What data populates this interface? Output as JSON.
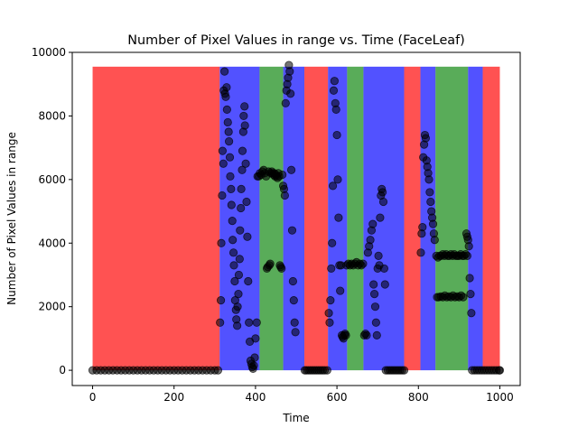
{
  "chart_data": {
    "type": "scatter",
    "title": "Number of Pixel Values in range vs. Time (FaceLeaf)",
    "xlabel": "Time",
    "ylabel": "Number of Pixel Values in range",
    "xlim": [
      -50,
      1050
    ],
    "ylim": [
      -480,
      10000
    ],
    "xticks": [
      0,
      200,
      400,
      600,
      800,
      1000
    ],
    "yticks": [
      0,
      2000,
      4000,
      6000,
      8000,
      10000
    ],
    "grid": false,
    "background_bands": {
      "top": 9550,
      "colors": {
        "red": "#ff0000",
        "blue": "#0000ff",
        "green": "#008000"
      },
      "segments": [
        {
          "start": 0,
          "end": 312,
          "color": "red"
        },
        {
          "start": 312,
          "end": 410,
          "color": "blue"
        },
        {
          "start": 410,
          "end": 468,
          "color": "green"
        },
        {
          "start": 468,
          "end": 520,
          "color": "blue"
        },
        {
          "start": 520,
          "end": 578,
          "color": "red"
        },
        {
          "start": 578,
          "end": 625,
          "color": "blue"
        },
        {
          "start": 625,
          "end": 665,
          "color": "green"
        },
        {
          "start": 665,
          "end": 765,
          "color": "blue"
        },
        {
          "start": 765,
          "end": 805,
          "color": "red"
        },
        {
          "start": 805,
          "end": 842,
          "color": "blue"
        },
        {
          "start": 842,
          "end": 922,
          "color": "green"
        },
        {
          "start": 922,
          "end": 958,
          "color": "blue"
        },
        {
          "start": 958,
          "end": 1000,
          "color": "red"
        }
      ]
    },
    "series": [
      {
        "marker_color": "#000000",
        "points": [
          [
            0,
            0
          ],
          [
            10,
            0
          ],
          [
            20,
            0
          ],
          [
            30,
            0
          ],
          [
            40,
            0
          ],
          [
            50,
            0
          ],
          [
            60,
            0
          ],
          [
            70,
            0
          ],
          [
            80,
            0
          ],
          [
            90,
            0
          ],
          [
            100,
            0
          ],
          [
            110,
            0
          ],
          [
            120,
            0
          ],
          [
            130,
            0
          ],
          [
            140,
            0
          ],
          [
            150,
            0
          ],
          [
            160,
            0
          ],
          [
            170,
            0
          ],
          [
            180,
            0
          ],
          [
            190,
            0
          ],
          [
            200,
            0
          ],
          [
            210,
            0
          ],
          [
            220,
            0
          ],
          [
            230,
            0
          ],
          [
            240,
            0
          ],
          [
            250,
            0
          ],
          [
            260,
            0
          ],
          [
            270,
            0
          ],
          [
            280,
            0
          ],
          [
            290,
            0
          ],
          [
            300,
            0
          ],
          [
            308,
            0
          ],
          [
            313,
            1500
          ],
          [
            315,
            2200
          ],
          [
            316,
            4000
          ],
          [
            318,
            5500
          ],
          [
            319,
            6900
          ],
          [
            321,
            6500
          ],
          [
            322,
            8800
          ],
          [
            324,
            9400
          ],
          [
            325,
            8700
          ],
          [
            327,
            8600
          ],
          [
            329,
            8900
          ],
          [
            330,
            8200
          ],
          [
            332,
            7800
          ],
          [
            334,
            7500
          ],
          [
            335,
            7200
          ],
          [
            337,
            6700
          ],
          [
            338,
            6100
          ],
          [
            340,
            5700
          ],
          [
            341,
            5200
          ],
          [
            343,
            4700
          ],
          [
            344,
            4100
          ],
          [
            346,
            3700
          ],
          [
            347,
            3300
          ],
          [
            349,
            2800
          ],
          [
            350,
            2200
          ],
          [
            352,
            1900
          ],
          [
            353,
            1600
          ],
          [
            355,
            1400
          ],
          [
            356,
            2000
          ],
          [
            358,
            2400
          ],
          [
            359,
            3000
          ],
          [
            361,
            3500
          ],
          [
            362,
            4400
          ],
          [
            364,
            5100
          ],
          [
            365,
            5700
          ],
          [
            367,
            6300
          ],
          [
            368,
            6900
          ],
          [
            370,
            7500
          ],
          [
            371,
            8000
          ],
          [
            373,
            8300
          ],
          [
            374,
            7700
          ],
          [
            376,
            6500
          ],
          [
            378,
            5300
          ],
          [
            380,
            4200
          ],
          [
            382,
            2800
          ],
          [
            384,
            1500
          ],
          [
            386,
            900
          ],
          [
            388,
            300
          ],
          [
            390,
            200
          ],
          [
            392,
            100
          ],
          [
            394,
            50
          ],
          [
            396,
            150
          ],
          [
            398,
            400
          ],
          [
            400,
            1000
          ],
          [
            403,
            1500
          ],
          [
            405,
            6100
          ],
          [
            408,
            6100
          ],
          [
            411,
            6200
          ],
          [
            414,
            6150
          ],
          [
            417,
            6250
          ],
          [
            420,
            6300
          ],
          [
            423,
            6200
          ],
          [
            426,
            6100
          ],
          [
            428,
            3200
          ],
          [
            430,
            3250
          ],
          [
            432,
            6250
          ],
          [
            434,
            3300
          ],
          [
            436,
            3350
          ],
          [
            438,
            6200
          ],
          [
            440,
            6250
          ],
          [
            442,
            6200
          ],
          [
            444,
            6150
          ],
          [
            446,
            6200
          ],
          [
            448,
            6100
          ],
          [
            450,
            6150
          ],
          [
            452,
            6100
          ],
          [
            454,
            6050
          ],
          [
            456,
            6200
          ],
          [
            458,
            6100
          ],
          [
            460,
            3300
          ],
          [
            462,
            3250
          ],
          [
            464,
            3200
          ],
          [
            466,
            6150
          ],
          [
            468,
            5800
          ],
          [
            470,
            5700
          ],
          [
            472,
            5500
          ],
          [
            474,
            8400
          ],
          [
            476,
            8800
          ],
          [
            478,
            9000
          ],
          [
            480,
            9200
          ],
          [
            482,
            9600
          ],
          [
            484,
            9400
          ],
          [
            486,
            8700
          ],
          [
            488,
            6300
          ],
          [
            490,
            4400
          ],
          [
            492,
            2800
          ],
          [
            494,
            2200
          ],
          [
            496,
            1500
          ],
          [
            498,
            1200
          ],
          [
            521,
            0
          ],
          [
            525,
            0
          ],
          [
            530,
            0
          ],
          [
            535,
            0
          ],
          [
            540,
            0
          ],
          [
            545,
            0
          ],
          [
            550,
            0
          ],
          [
            555,
            0
          ],
          [
            560,
            0
          ],
          [
            565,
            0
          ],
          [
            570,
            0
          ],
          [
            576,
            0
          ],
          [
            580,
            1800
          ],
          [
            582,
            1500
          ],
          [
            584,
            2200
          ],
          [
            586,
            3200
          ],
          [
            588,
            4000
          ],
          [
            590,
            5800
          ],
          [
            592,
            8800
          ],
          [
            594,
            9100
          ],
          [
            596,
            8400
          ],
          [
            598,
            8200
          ],
          [
            600,
            7400
          ],
          [
            602,
            6000
          ],
          [
            604,
            4800
          ],
          [
            606,
            3300
          ],
          [
            608,
            2500
          ],
          [
            610,
            3300
          ],
          [
            612,
            1100
          ],
          [
            614,
            1050
          ],
          [
            616,
            1000
          ],
          [
            618,
            1100
          ],
          [
            620,
            1150
          ],
          [
            622,
            1100
          ],
          [
            624,
            3300
          ],
          [
            628,
            3350
          ],
          [
            632,
            3300
          ],
          [
            636,
            3350
          ],
          [
            640,
            3300
          ],
          [
            644,
            3350
          ],
          [
            648,
            3400
          ],
          [
            652,
            3300
          ],
          [
            656,
            3350
          ],
          [
            660,
            3300
          ],
          [
            664,
            3350
          ],
          [
            667,
            1100
          ],
          [
            670,
            1150
          ],
          [
            673,
            1100
          ],
          [
            676,
            3700
          ],
          [
            679,
            3900
          ],
          [
            682,
            4100
          ],
          [
            685,
            4400
          ],
          [
            688,
            4600
          ],
          [
            690,
            2700
          ],
          [
            692,
            2400
          ],
          [
            694,
            2000
          ],
          [
            696,
            1500
          ],
          [
            698,
            1100
          ],
          [
            700,
            3200
          ],
          [
            702,
            3600
          ],
          [
            704,
            3300
          ],
          [
            706,
            4800
          ],
          [
            708,
            5500
          ],
          [
            710,
            5700
          ],
          [
            712,
            5600
          ],
          [
            714,
            5300
          ],
          [
            716,
            3200
          ],
          [
            718,
            2700
          ],
          [
            720,
            0
          ],
          [
            725,
            0
          ],
          [
            730,
            0
          ],
          [
            735,
            0
          ],
          [
            740,
            0
          ],
          [
            745,
            0
          ],
          [
            750,
            0
          ],
          [
            755,
            0
          ],
          [
            760,
            0
          ],
          [
            765,
            0
          ],
          [
            806,
            3700
          ],
          [
            808,
            4300
          ],
          [
            810,
            4500
          ],
          [
            812,
            6700
          ],
          [
            814,
            7100
          ],
          [
            816,
            7400
          ],
          [
            818,
            7300
          ],
          [
            820,
            6600
          ],
          [
            822,
            6400
          ],
          [
            824,
            6200
          ],
          [
            826,
            6000
          ],
          [
            828,
            5600
          ],
          [
            830,
            5300
          ],
          [
            832,
            5000
          ],
          [
            834,
            4800
          ],
          [
            836,
            4600
          ],
          [
            838,
            4300
          ],
          [
            840,
            4100
          ],
          [
            844,
            3600
          ],
          [
            848,
            3550
          ],
          [
            852,
            3600
          ],
          [
            856,
            3600
          ],
          [
            860,
            3650
          ],
          [
            864,
            3600
          ],
          [
            868,
            3650
          ],
          [
            872,
            3600
          ],
          [
            876,
            3600
          ],
          [
            880,
            3650
          ],
          [
            884,
            3600
          ],
          [
            888,
            3650
          ],
          [
            892,
            3600
          ],
          [
            896,
            3600
          ],
          [
            900,
            3600
          ],
          [
            904,
            3650
          ],
          [
            908,
            3600
          ],
          [
            912,
            3600
          ],
          [
            916,
            3650
          ],
          [
            920,
            3600
          ],
          [
            846,
            2300
          ],
          [
            850,
            2300
          ],
          [
            855,
            2320
          ],
          [
            860,
            2300
          ],
          [
            865,
            2350
          ],
          [
            870,
            2300
          ],
          [
            875,
            2320
          ],
          [
            880,
            2300
          ],
          [
            885,
            2350
          ],
          [
            890,
            2300
          ],
          [
            895,
            2320
          ],
          [
            900,
            2300
          ],
          [
            905,
            2350
          ],
          [
            910,
            2300
          ],
          [
            918,
            4300
          ],
          [
            920,
            4200
          ],
          [
            922,
            4100
          ],
          [
            924,
            3900
          ],
          [
            926,
            2900
          ],
          [
            928,
            2400
          ],
          [
            930,
            1800
          ],
          [
            932,
            0
          ],
          [
            938,
            0
          ],
          [
            944,
            0
          ],
          [
            950,
            0
          ],
          [
            956,
            0
          ],
          [
            962,
            0
          ],
          [
            968,
            0
          ],
          [
            974,
            0
          ],
          [
            980,
            0
          ],
          [
            986,
            0
          ],
          [
            992,
            0
          ],
          [
            998,
            0
          ],
          [
            1000,
            0
          ]
        ]
      }
    ]
  }
}
